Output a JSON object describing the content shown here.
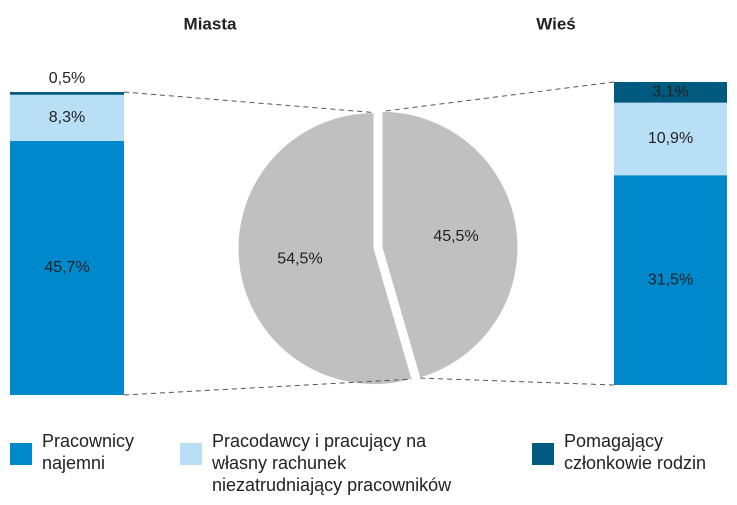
{
  "chart_data": {
    "type": "bar-of-pie",
    "categories": [
      "Miasta",
      "Wieś"
    ],
    "values": [
      54.5,
      45.5
    ],
    "value_labels": [
      "54,5%",
      "45,5%"
    ],
    "color": "#c0c0c0",
    "series": [
      {
        "name": "Pracownicy najemni",
        "color": "#0088cc",
        "values": [
          45.7,
          31.5
        ],
        "value_labels": [
          "45,7%",
          "31,5%"
        ]
      },
      {
        "name": "Pracodawcy i pracujący na własny rachunek niezatrudniający pracowników",
        "color": "#b9dff7",
        "values": [
          8.3,
          10.9
        ],
        "value_labels": [
          "8,3%",
          "10,9%"
        ]
      },
      {
        "name": "Pomagający członkowie rodzin",
        "color": "#005a80",
        "values": [
          0.5,
          3.1
        ],
        "value_labels": [
          "0,5%",
          "3,1%"
        ]
      }
    ]
  }
}
